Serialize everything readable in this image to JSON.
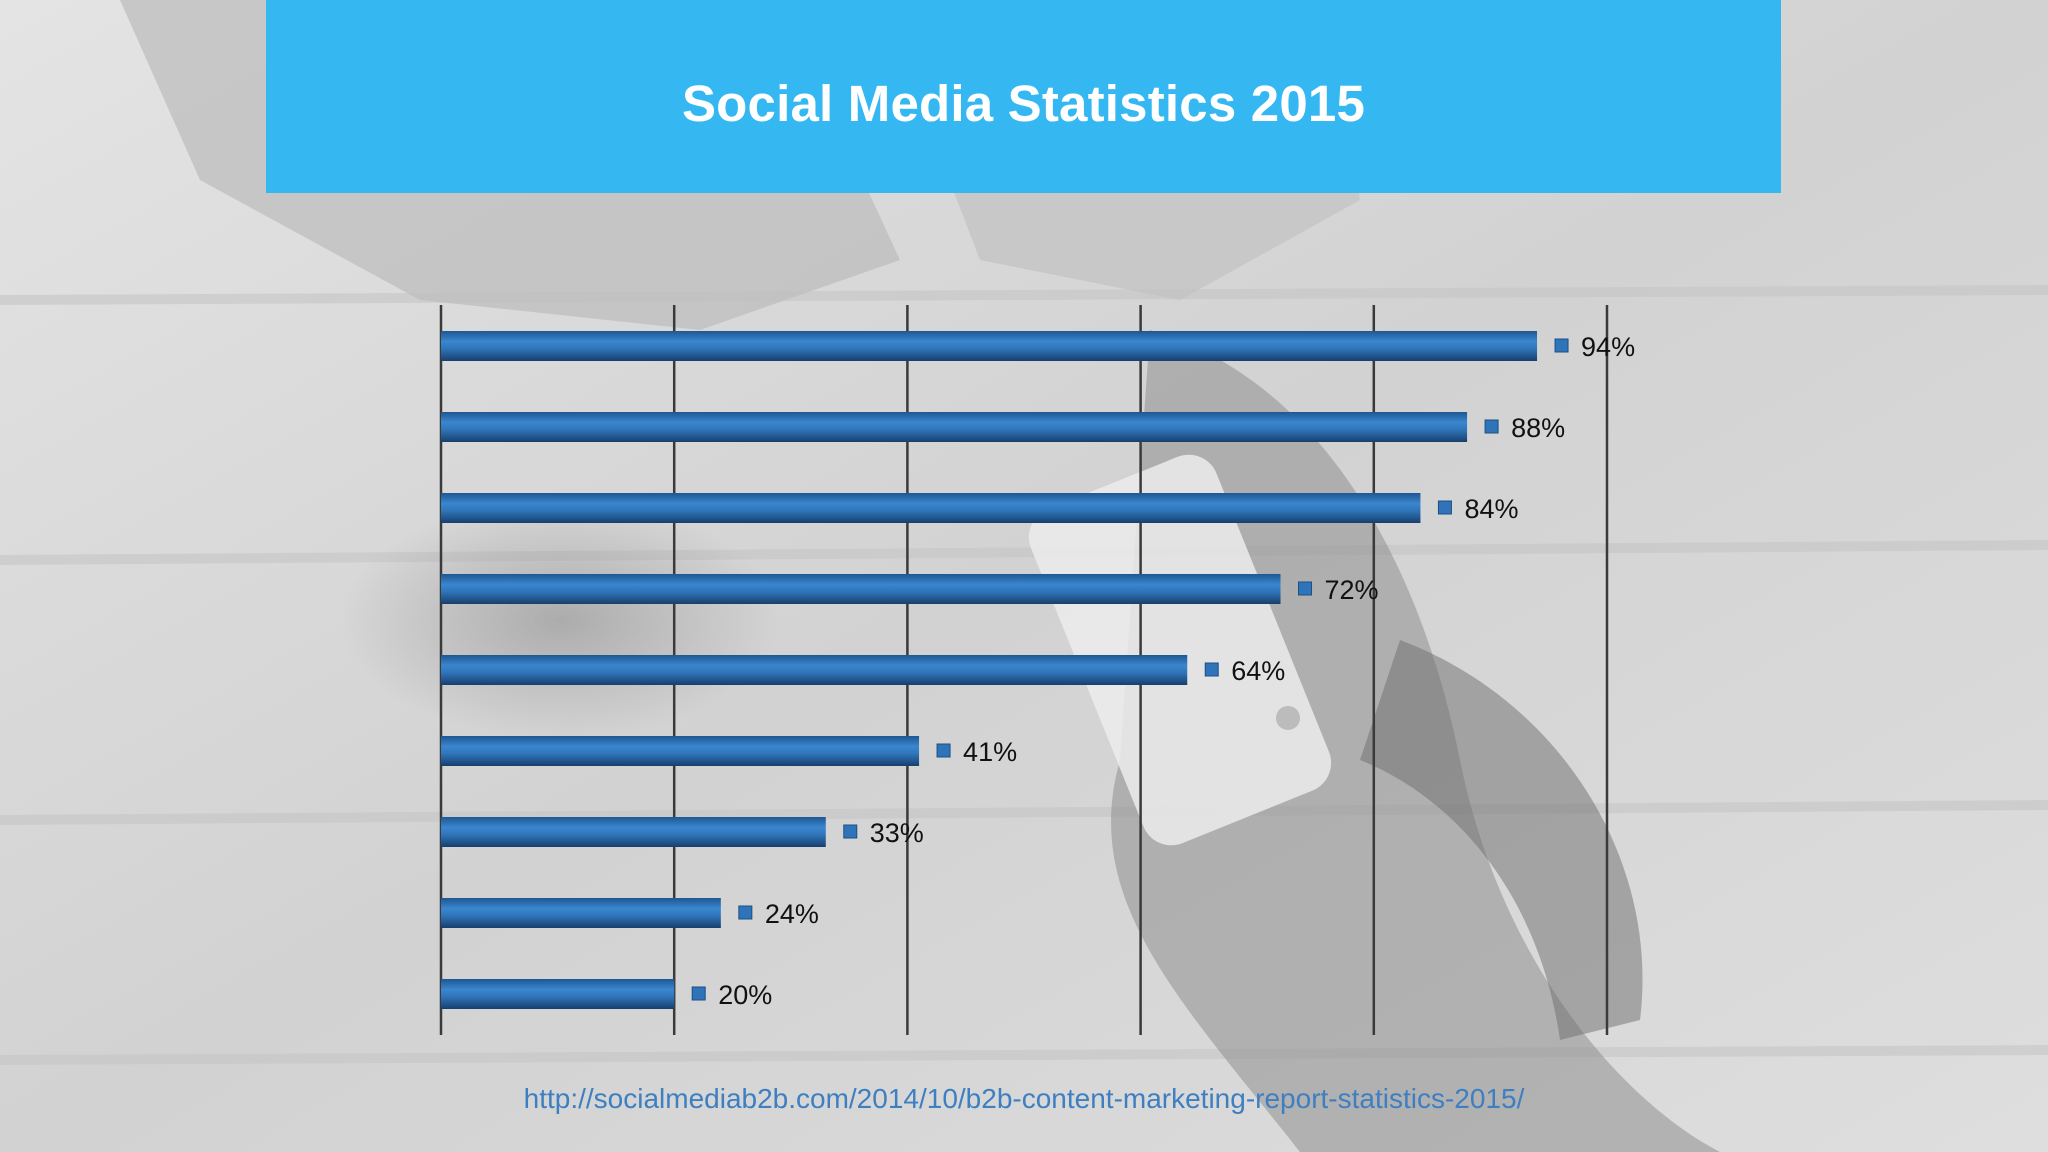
{
  "slide": {
    "title": "Social Media Statistics 2015",
    "source_url": "http://socialmediab2b.com/2014/10/b2b-content-marketing-report-statistics-2015/"
  },
  "colors": {
    "banner": "#35b8f2",
    "bar": "#2f74b8",
    "bar_dark": "#1c4f86",
    "gridline": "#3a3a3a",
    "link": "#3d7fc1",
    "label": "#111111"
  },
  "chart_data": {
    "type": "bar",
    "orientation": "horizontal",
    "categories": [
      "",
      "",
      "",
      "",
      "",
      "",
      "",
      "",
      ""
    ],
    "values": [
      94,
      88,
      84,
      72,
      64,
      41,
      33,
      24,
      20
    ],
    "data_labels": [
      "94%",
      "88%",
      "84%",
      "72%",
      "64%",
      "41%",
      "33%",
      "24%",
      "20%"
    ],
    "title": "",
    "xlabel": "",
    "ylabel": "",
    "xlim": [
      0,
      100
    ],
    "grid": true,
    "gridline_values": [
      0,
      20,
      40,
      60,
      80,
      100
    ],
    "legend": false
  }
}
